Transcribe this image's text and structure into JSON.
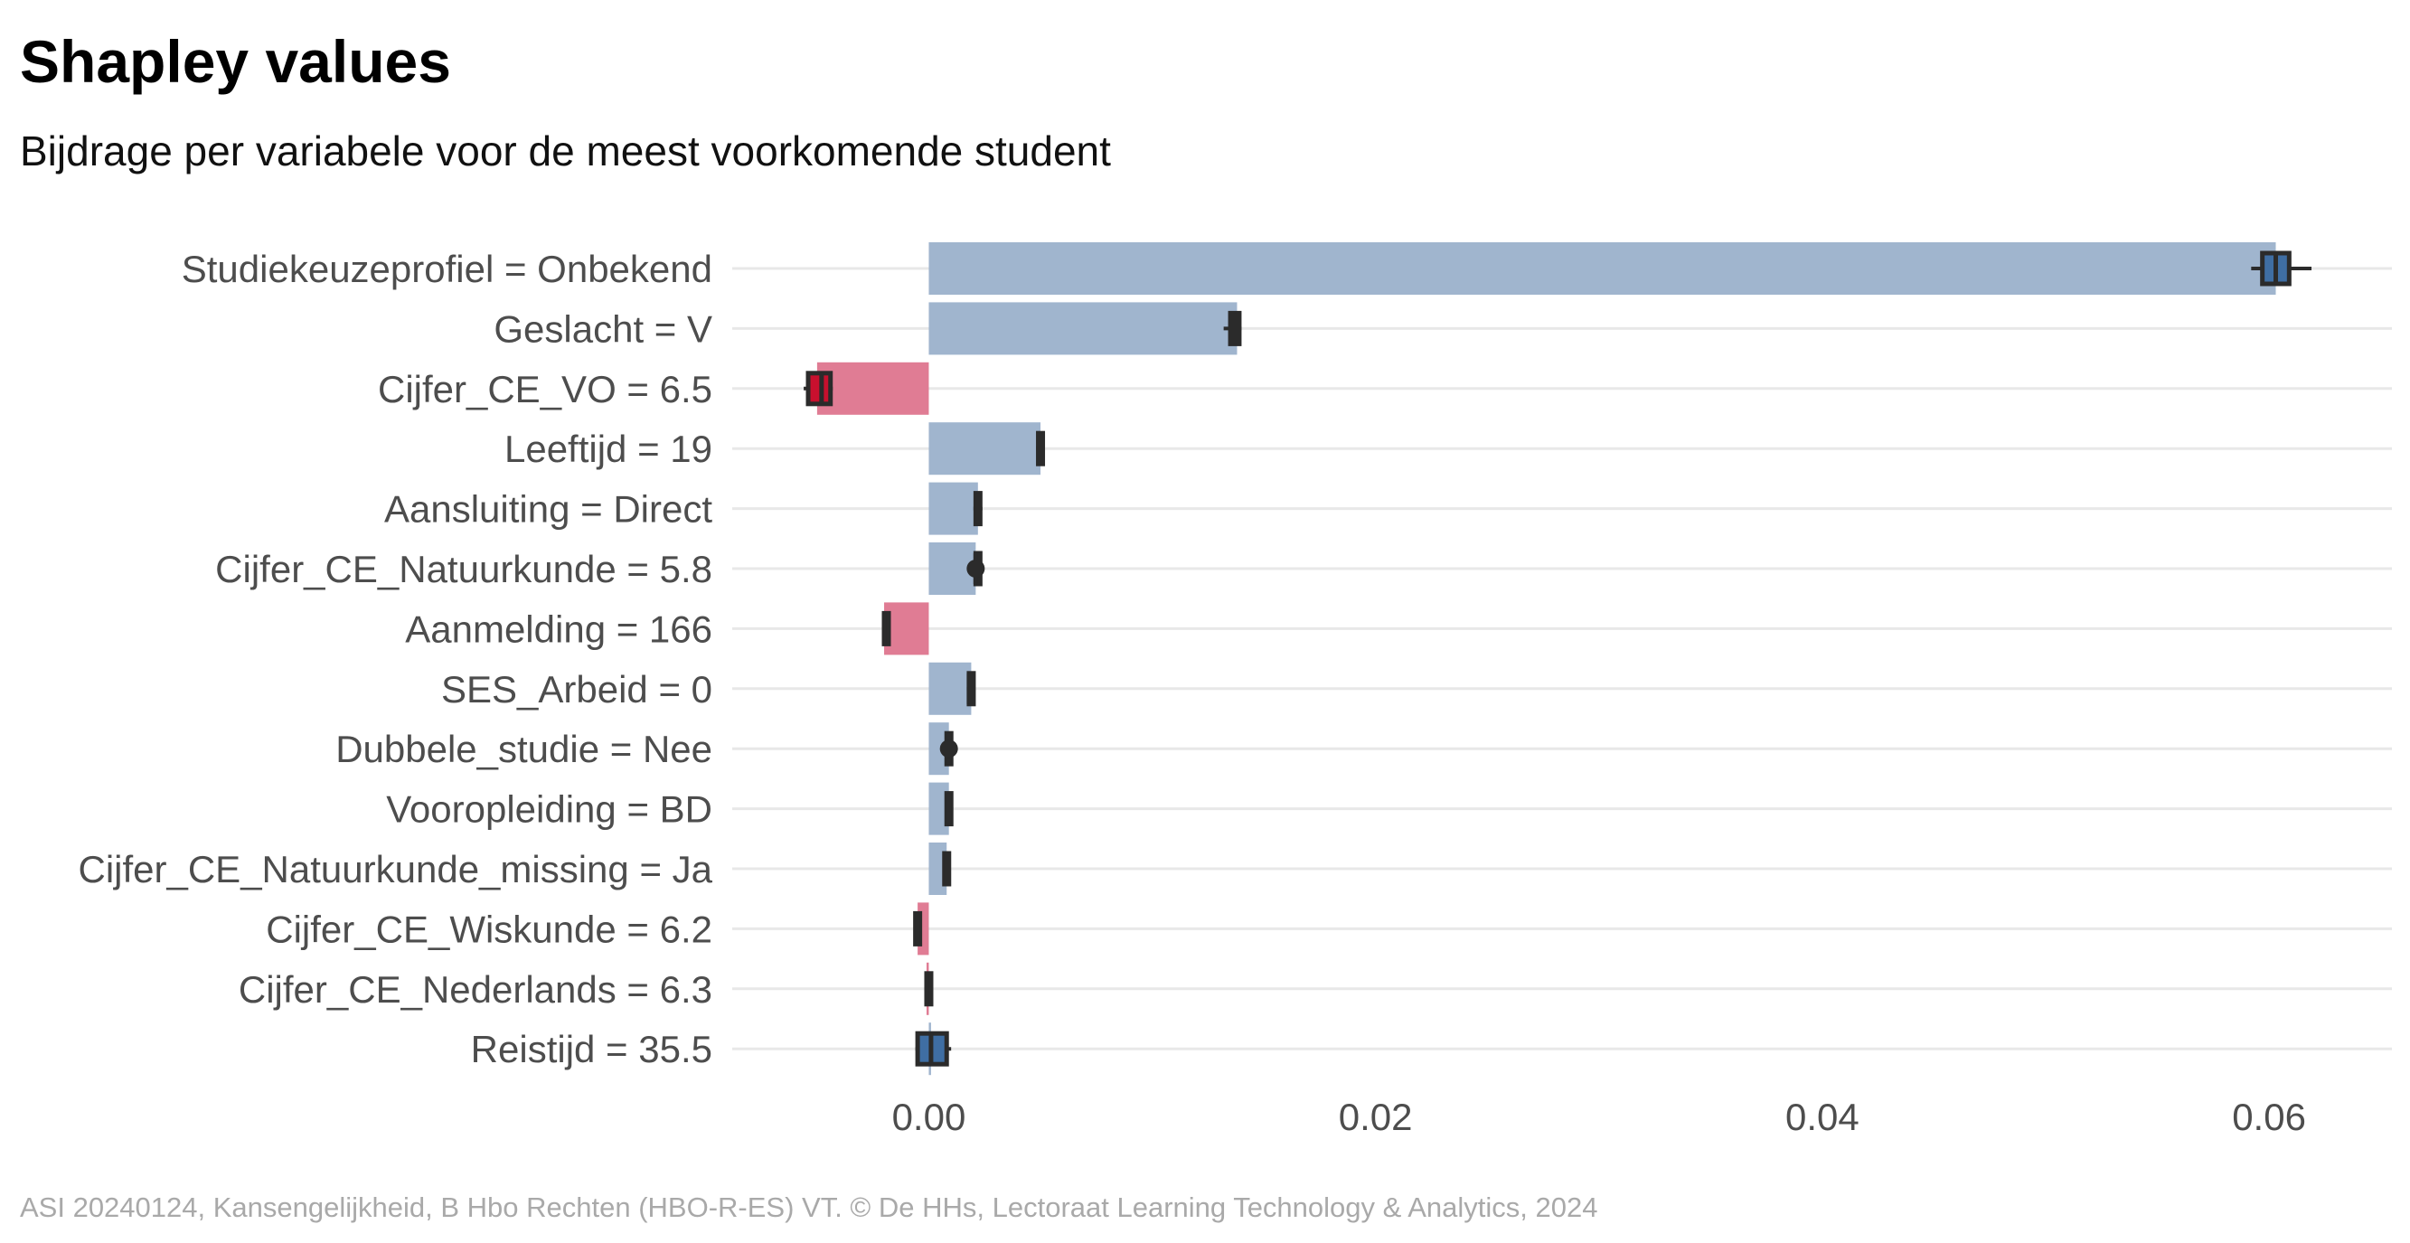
{
  "chart_data": {
    "type": "bar",
    "title": "Shapley values",
    "subtitle": "Bijdrage per variabele voor de meest voorkomende student",
    "caption": "ASI 20240124, Kansengelijkheid, B Hbo Rechten (HBO-R-ES) VT. © De HHs, Lectoraat Learning Technology & Analytics, 2024",
    "orientation": "horizontal",
    "categories": [
      "Studiekeuzeprofiel = Onbekend",
      "Geslacht = V",
      "Cijfer_CE_VO = 6.5",
      "Leeftijd = 19",
      "Aansluiting = Direct",
      "Cijfer_CE_Natuurkunde = 5.8",
      "Aanmelding = 166",
      "SES_Arbeid = 0",
      "Dubbele_studie = Nee",
      "Vooropleiding = BD",
      "Cijfer_CE_Natuurkunde_missing = Ja",
      "Cijfer_CE_Wiskunde = 6.2",
      "Cijfer_CE_Nederlands = 6.3",
      "Reistijd = 35.5"
    ],
    "values": [
      0.0603,
      0.0138,
      -0.005,
      0.005,
      0.0022,
      0.0021,
      -0.002,
      0.0019,
      0.0009,
      0.0009,
      0.0008,
      -0.0005,
      -0.0001,
      0.0001
    ],
    "boxplots": [
      {
        "whisker_low": 0.0592,
        "q1": 0.0597,
        "median": 0.0603,
        "q3": 0.0609,
        "whisker_high": 0.0619
      },
      {
        "whisker_low": 0.0132,
        "q1": 0.0135,
        "median": 0.0137,
        "q3": 0.0139,
        "whisker_high": 0.014
      },
      {
        "whisker_low": -0.0056,
        "q1": -0.0054,
        "median": -0.0048,
        "q3": -0.0044,
        "whisker_high": -0.0043
      },
      {
        "whisker_low": 0.0048,
        "q1": 0.0049,
        "median": 0.005,
        "q3": 0.0051,
        "whisker_high": 0.0052
      },
      {
        "whisker_low": 0.002,
        "q1": 0.0021,
        "median": 0.0022,
        "q3": 0.0023,
        "whisker_high": 0.0024
      },
      {
        "whisker_low": 0.002,
        "q1": 0.0021,
        "median": 0.0021,
        "q3": 0.0022,
        "whisker_high": 0.0023,
        "dot": true
      },
      {
        "whisker_low": -0.0021,
        "q1": -0.002,
        "median": -0.002,
        "q3": -0.0019,
        "whisker_high": -0.0018
      },
      {
        "whisker_low": 0.0017,
        "q1": 0.0018,
        "median": 0.0018,
        "q3": 0.0019,
        "whisker_high": 0.002
      },
      {
        "whisker_low": 0.0008,
        "q1": 0.0008,
        "median": 0.0009,
        "q3": 0.0009,
        "whisker_high": 0.001,
        "dot": true
      },
      {
        "whisker_low": 0.0008,
        "q1": 0.0008,
        "median": 0.0009,
        "q3": 0.001,
        "whisker_high": 0.001
      },
      {
        "whisker_low": 0.0007,
        "q1": 0.0007,
        "median": 0.0008,
        "q3": 0.0008,
        "whisker_high": 0.0009
      },
      {
        "whisker_low": -0.0006,
        "q1": -0.0006,
        "median": -0.0005,
        "q3": -0.0004,
        "whisker_high": -0.0004
      },
      {
        "whisker_low": -0.0002,
        "q1": -0.0001,
        "median": -0.0001,
        "q3": 0.0,
        "whisker_high": 0.0
      },
      {
        "whisker_low": -0.0006,
        "q1": -0.0005,
        "median": 0.0001,
        "q3": 0.0008,
        "whisker_high": 0.001
      }
    ],
    "xlim": [
      -0.0088,
      0.0655
    ],
    "xticks": [
      0.0,
      0.02,
      0.04,
      0.06
    ],
    "xtick_labels": [
      "0.00",
      "0.02",
      "0.04",
      "0.06"
    ],
    "xlabel": "",
    "ylabel": "",
    "grid": "horizontal",
    "legend": "none",
    "colors": {
      "positive_bar": "#a0b5ce",
      "negative_bar": "#e07c94",
      "positive_box": "#3f6ea3",
      "negative_box": "#c8102e",
      "box_outline": "#2b2b2b",
      "grid": "#e8e8e8",
      "label": "#4d4d4d"
    }
  }
}
